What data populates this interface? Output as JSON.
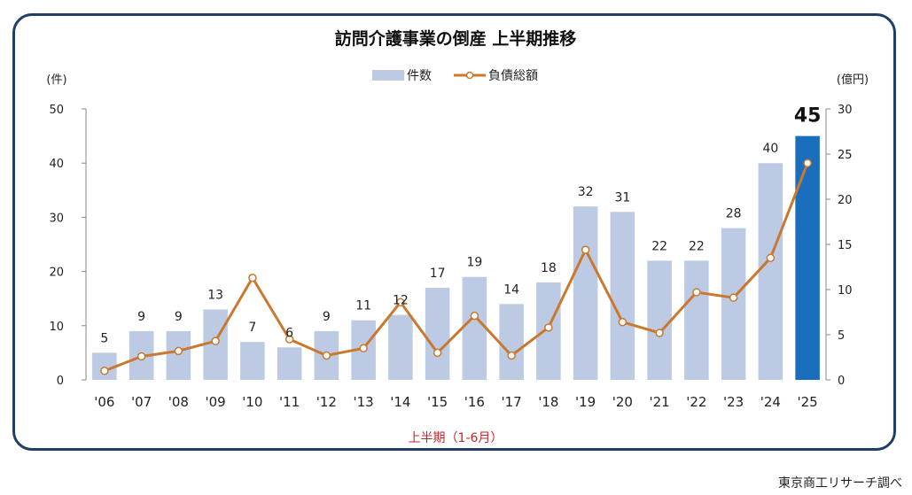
{
  "chart_data": {
    "type": "bar",
    "title": "訪問介護事業の倒産 上半期推移",
    "xlabel": "上半期（1-6月）",
    "ylabel_left": "(件)",
    "ylabel_right": "(億円)",
    "categories": [
      "'06",
      "'07",
      "'08",
      "'09",
      "'10",
      "'11",
      "'12",
      "'13",
      "'14",
      "'15",
      "'16",
      "'17",
      "'18",
      "'19",
      "'20",
      "'21",
      "'22",
      "'23",
      "'24",
      "'25"
    ],
    "ylim_left": [
      0,
      50
    ],
    "ylim_right": [
      0,
      30
    ],
    "yticks_left": [
      0,
      10,
      20,
      30,
      40,
      50
    ],
    "yticks_right": [
      0,
      5,
      10,
      15,
      20,
      25,
      30
    ],
    "grid": false,
    "legend_position": "top-center",
    "series": [
      {
        "name": "件数",
        "type": "bar",
        "axis": "left",
        "color": "#bccbe3",
        "highlight_color": "#1a6fbd",
        "highlight_index": 19,
        "values": [
          5,
          9,
          9,
          13,
          7,
          6,
          9,
          11,
          12,
          17,
          19,
          14,
          18,
          32,
          31,
          22,
          22,
          28,
          40,
          45
        ]
      },
      {
        "name": "負債総額",
        "type": "line",
        "axis": "right",
        "color": "#c9782e",
        "marker": "circle-open",
        "values": [
          1.0,
          2.6,
          3.2,
          4.3,
          11.3,
          4.5,
          2.7,
          3.5,
          8.6,
          3.0,
          7.1,
          2.7,
          5.8,
          14.4,
          6.4,
          5.2,
          9.7,
          9.1,
          13.5,
          24.0
        ]
      }
    ]
  },
  "source_note": "東京商工リサーチ調べ"
}
